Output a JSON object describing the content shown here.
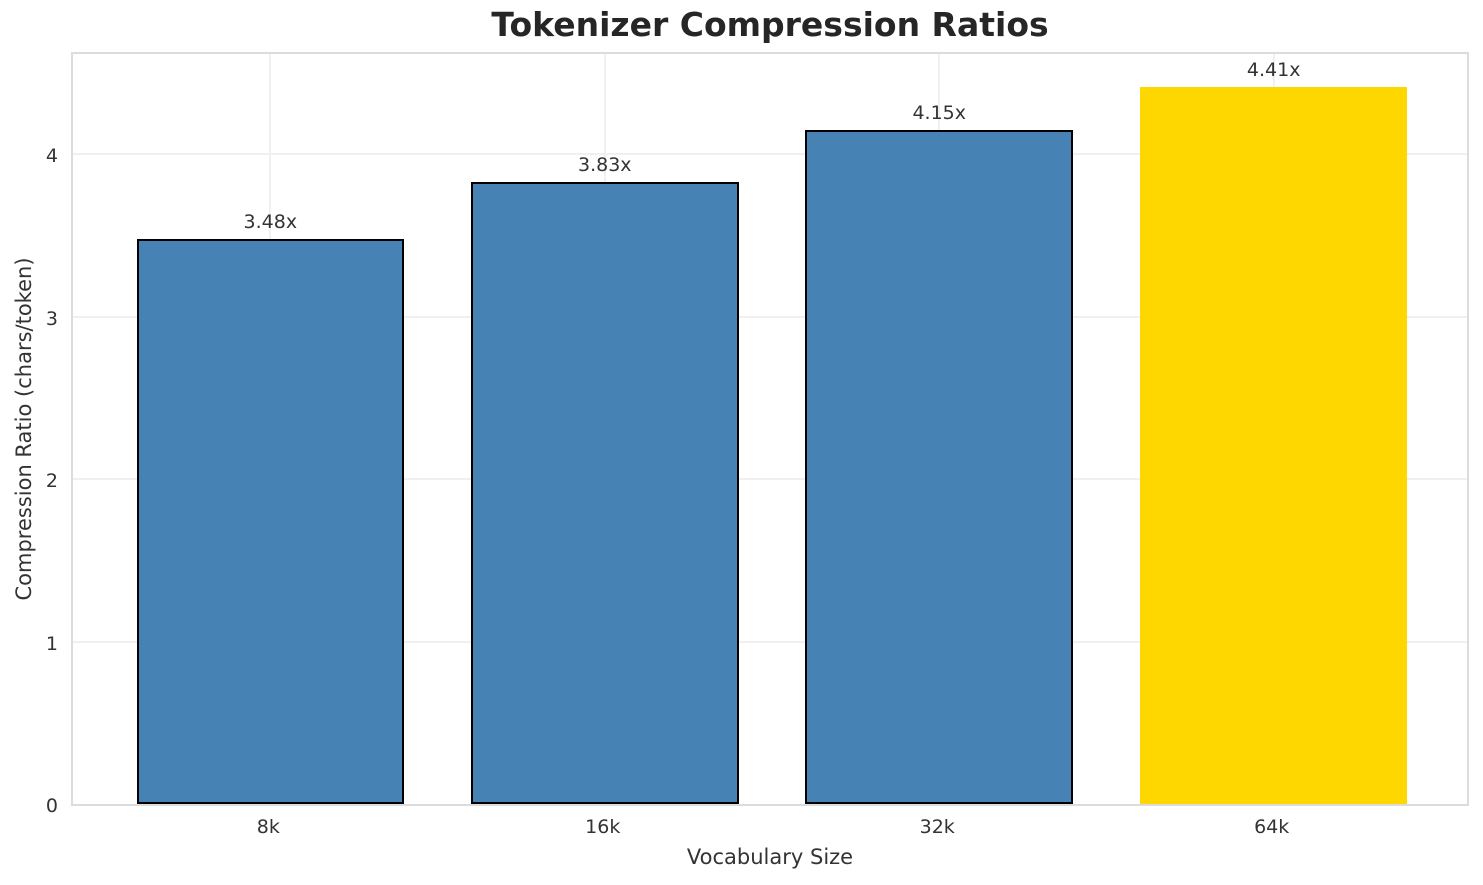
{
  "chart_data": {
    "type": "bar",
    "title": "Tokenizer Compression Ratios",
    "xlabel": "Vocabulary Size",
    "ylabel": "Compression Ratio (chars/token)",
    "categories": [
      "8k",
      "16k",
      "32k",
      "64k"
    ],
    "values": [
      3.48,
      3.83,
      4.15,
      4.41
    ],
    "value_labels": [
      "3.48x",
      "3.83x",
      "4.15x",
      "4.41x"
    ],
    "bar_colors": [
      "#4682b4",
      "#4682b4",
      "#4682b4",
      "#ffd700"
    ],
    "bar_edge_colors": [
      "#000000",
      "#000000",
      "#000000",
      "none"
    ],
    "highlight_index": 3,
    "highlight_color": "#ffd700",
    "base_color": "#4682b4",
    "yticks": [
      "0",
      "1",
      "2",
      "3",
      "4"
    ],
    "ytick_values": [
      0,
      1,
      2,
      3,
      4
    ],
    "ylim": [
      0,
      4.64
    ],
    "grid": true,
    "legend": "none"
  }
}
